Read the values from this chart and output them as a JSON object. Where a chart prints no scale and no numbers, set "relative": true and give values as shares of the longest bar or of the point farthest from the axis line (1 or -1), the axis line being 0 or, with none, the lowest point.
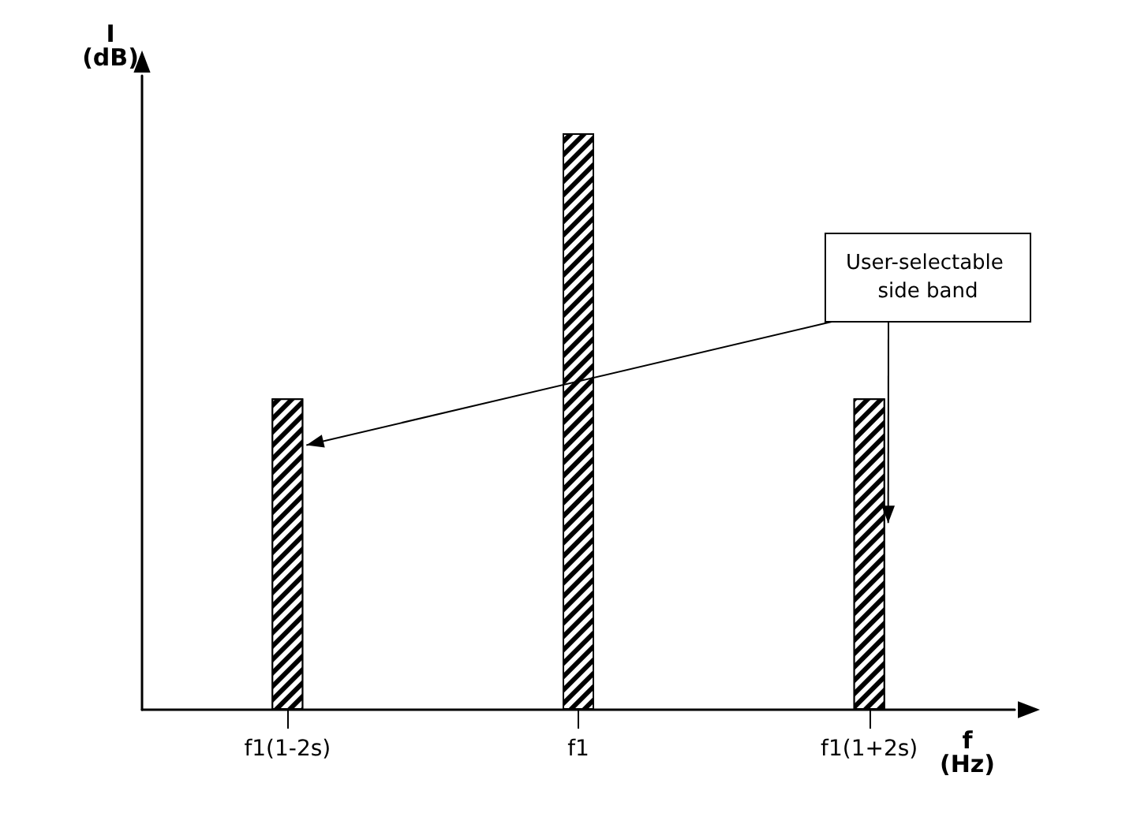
{
  "chart_data": {
    "type": "bar",
    "relative": true,
    "xlabel": "f\n(Hz)",
    "ylabel": "I\n(dB)",
    "categories": [
      "f1(1-2s)",
      "f1",
      "f1(1+2s)"
    ],
    "values": [
      0.54,
      1,
      0.54
    ],
    "color": "#000000",
    "grid": false,
    "annotations": [
      "User-selectable side band"
    ]
  }
}
